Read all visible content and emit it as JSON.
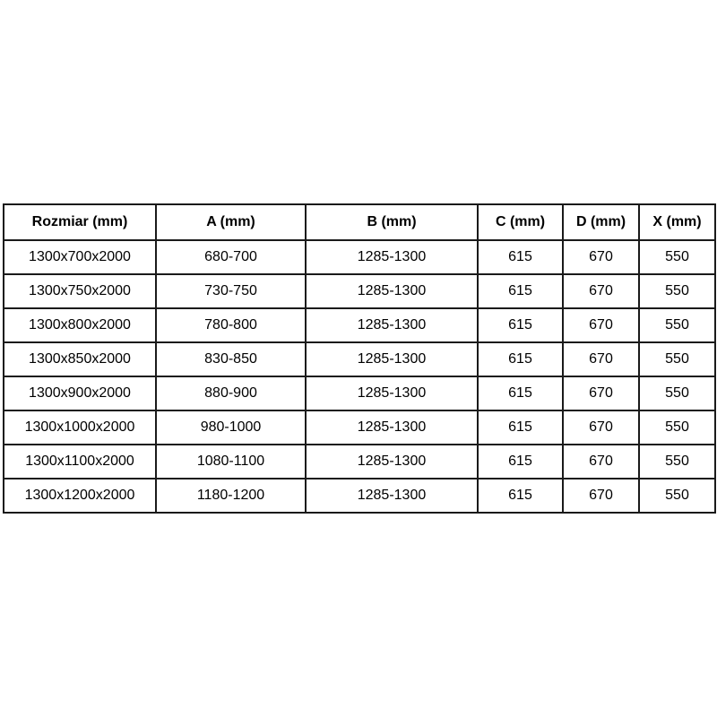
{
  "page": {
    "background_color": "#ffffff",
    "border_color": "#1a1a1a",
    "text_color": "#000000"
  },
  "table": {
    "headers": [
      "Rozmiar (mm)",
      "A (mm)",
      "B (mm)",
      "C (mm)",
      "D (mm)",
      "X (mm)"
    ],
    "rows": [
      [
        "1300x700x2000",
        "680-700",
        "1285-1300",
        "615",
        "670",
        "550"
      ],
      [
        "1300x750x2000",
        "730-750",
        "1285-1300",
        "615",
        "670",
        "550"
      ],
      [
        "1300x800x2000",
        "780-800",
        "1285-1300",
        "615",
        "670",
        "550"
      ],
      [
        "1300x850x2000",
        "830-850",
        "1285-1300",
        "615",
        "670",
        "550"
      ],
      [
        "1300x900x2000",
        "880-900",
        "1285-1300",
        "615",
        "670",
        "550"
      ],
      [
        "1300x1000x2000",
        "980-1000",
        "1285-1300",
        "615",
        "670",
        "550"
      ],
      [
        "1300x1100x2000",
        "1080-1100",
        "1285-1300",
        "615",
        "670",
        "550"
      ],
      [
        "1300x1200x2000",
        "1180-1200",
        "1285-1300",
        "615",
        "670",
        "550"
      ]
    ]
  },
  "chart_data": {
    "type": "table",
    "title": "",
    "columns": [
      "Rozmiar (mm)",
      "A (mm)",
      "B (mm)",
      "C (mm)",
      "D (mm)",
      "X (mm)"
    ],
    "rows": [
      [
        "1300x700x2000",
        "680-700",
        "1285-1300",
        615,
        670,
        550
      ],
      [
        "1300x750x2000",
        "730-750",
        "1285-1300",
        615,
        670,
        550
      ],
      [
        "1300x800x2000",
        "780-800",
        "1285-1300",
        615,
        670,
        550
      ],
      [
        "1300x850x2000",
        "830-850",
        "1285-1300",
        615,
        670,
        550
      ],
      [
        "1300x900x2000",
        "880-900",
        "1285-1300",
        615,
        670,
        550
      ],
      [
        "1300x1000x2000",
        "980-1000",
        "1285-1300",
        615,
        670,
        550
      ],
      [
        "1300x1100x2000",
        "1080-1100",
        "1285-1300",
        615,
        670,
        550
      ],
      [
        "1300x1200x2000",
        "1180-1200",
        "1285-1300",
        615,
        670,
        550
      ]
    ]
  }
}
